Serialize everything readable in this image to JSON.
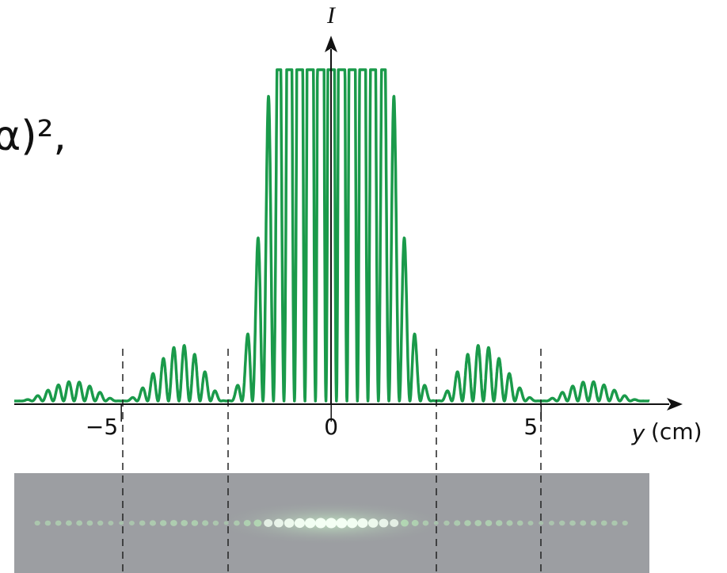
{
  "fragment": "α)²,",
  "chart_data": {
    "type": "line",
    "y_label": "I",
    "x_label_var": "y",
    "x_label_unit": "(cm)",
    "xlim": [
      -7.55,
      7.58
    ],
    "xticks": [
      {
        "value": -5,
        "label": "−5"
      },
      0,
      5
    ]
  }
}
